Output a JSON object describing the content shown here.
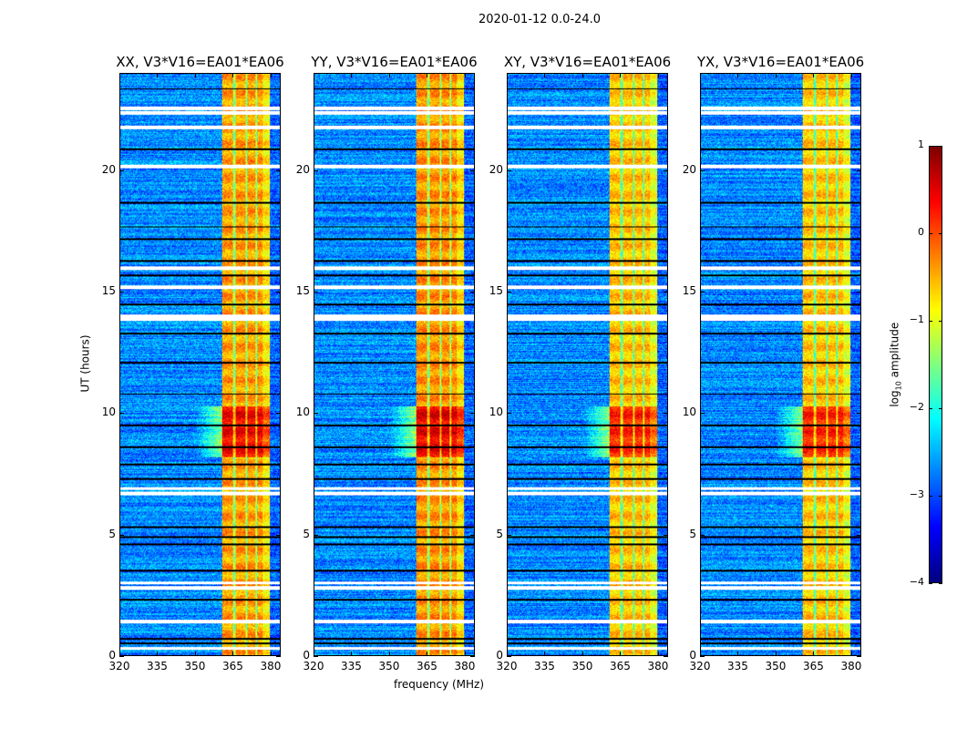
{
  "figure_title": "2020-01-12 0.0-24.0",
  "chart_data": {
    "type": "heatmap",
    "title": "2020-01-12 0.0-24.0",
    "xlabel": "frequency (MHz)",
    "ylabel": "UT (hours)",
    "xlim": [
      320,
      384
    ],
    "ylim": [
      0,
      24
    ],
    "xticks": [
      320,
      335,
      350,
      365,
      380
    ],
    "yticks": [
      0,
      5,
      10,
      15,
      20
    ],
    "panels": [
      {
        "title": "XX, V3*V16=EA01*EA06",
        "band_level": -0.4
      },
      {
        "title": "YY, V3*V16=EA01*EA06",
        "band_level": -0.35
      },
      {
        "title": "XY, V3*V16=EA01*EA06",
        "band_level": -0.6
      },
      {
        "title": "YX, V3*V16=EA01*EA06",
        "band_level": -0.6
      }
    ],
    "background_level": -2.7,
    "band_mhz": [
      360.5,
      380
    ],
    "band_dips_mhz": [
      365.5,
      370.5,
      374.5
    ],
    "strong_interval_hours": [
      8.2,
      10.3
    ],
    "flagged_hours": [
      0.3,
      1.4,
      2.8,
      3.0,
      6.7,
      6.9,
      13.9,
      14.0,
      15.2,
      16.0,
      20.2,
      21.8,
      22.4,
      22.6
    ],
    "dark_rows_hours": [
      0.5,
      0.7,
      2.3,
      3.5,
      4.6,
      4.9,
      5.3,
      7.3,
      7.9,
      8.6,
      9.5,
      10.8,
      12.1,
      13.3,
      14.5,
      15.7,
      16.3,
      17.2,
      17.7,
      18.7,
      20.9,
      23.4
    ],
    "colorbar": {
      "label": "log10 amplitude",
      "range": [
        -4,
        1
      ],
      "ticks": [
        "1",
        "0",
        "−1",
        "−2",
        "−3",
        "−4"
      ],
      "colormap": "jet"
    }
  }
}
